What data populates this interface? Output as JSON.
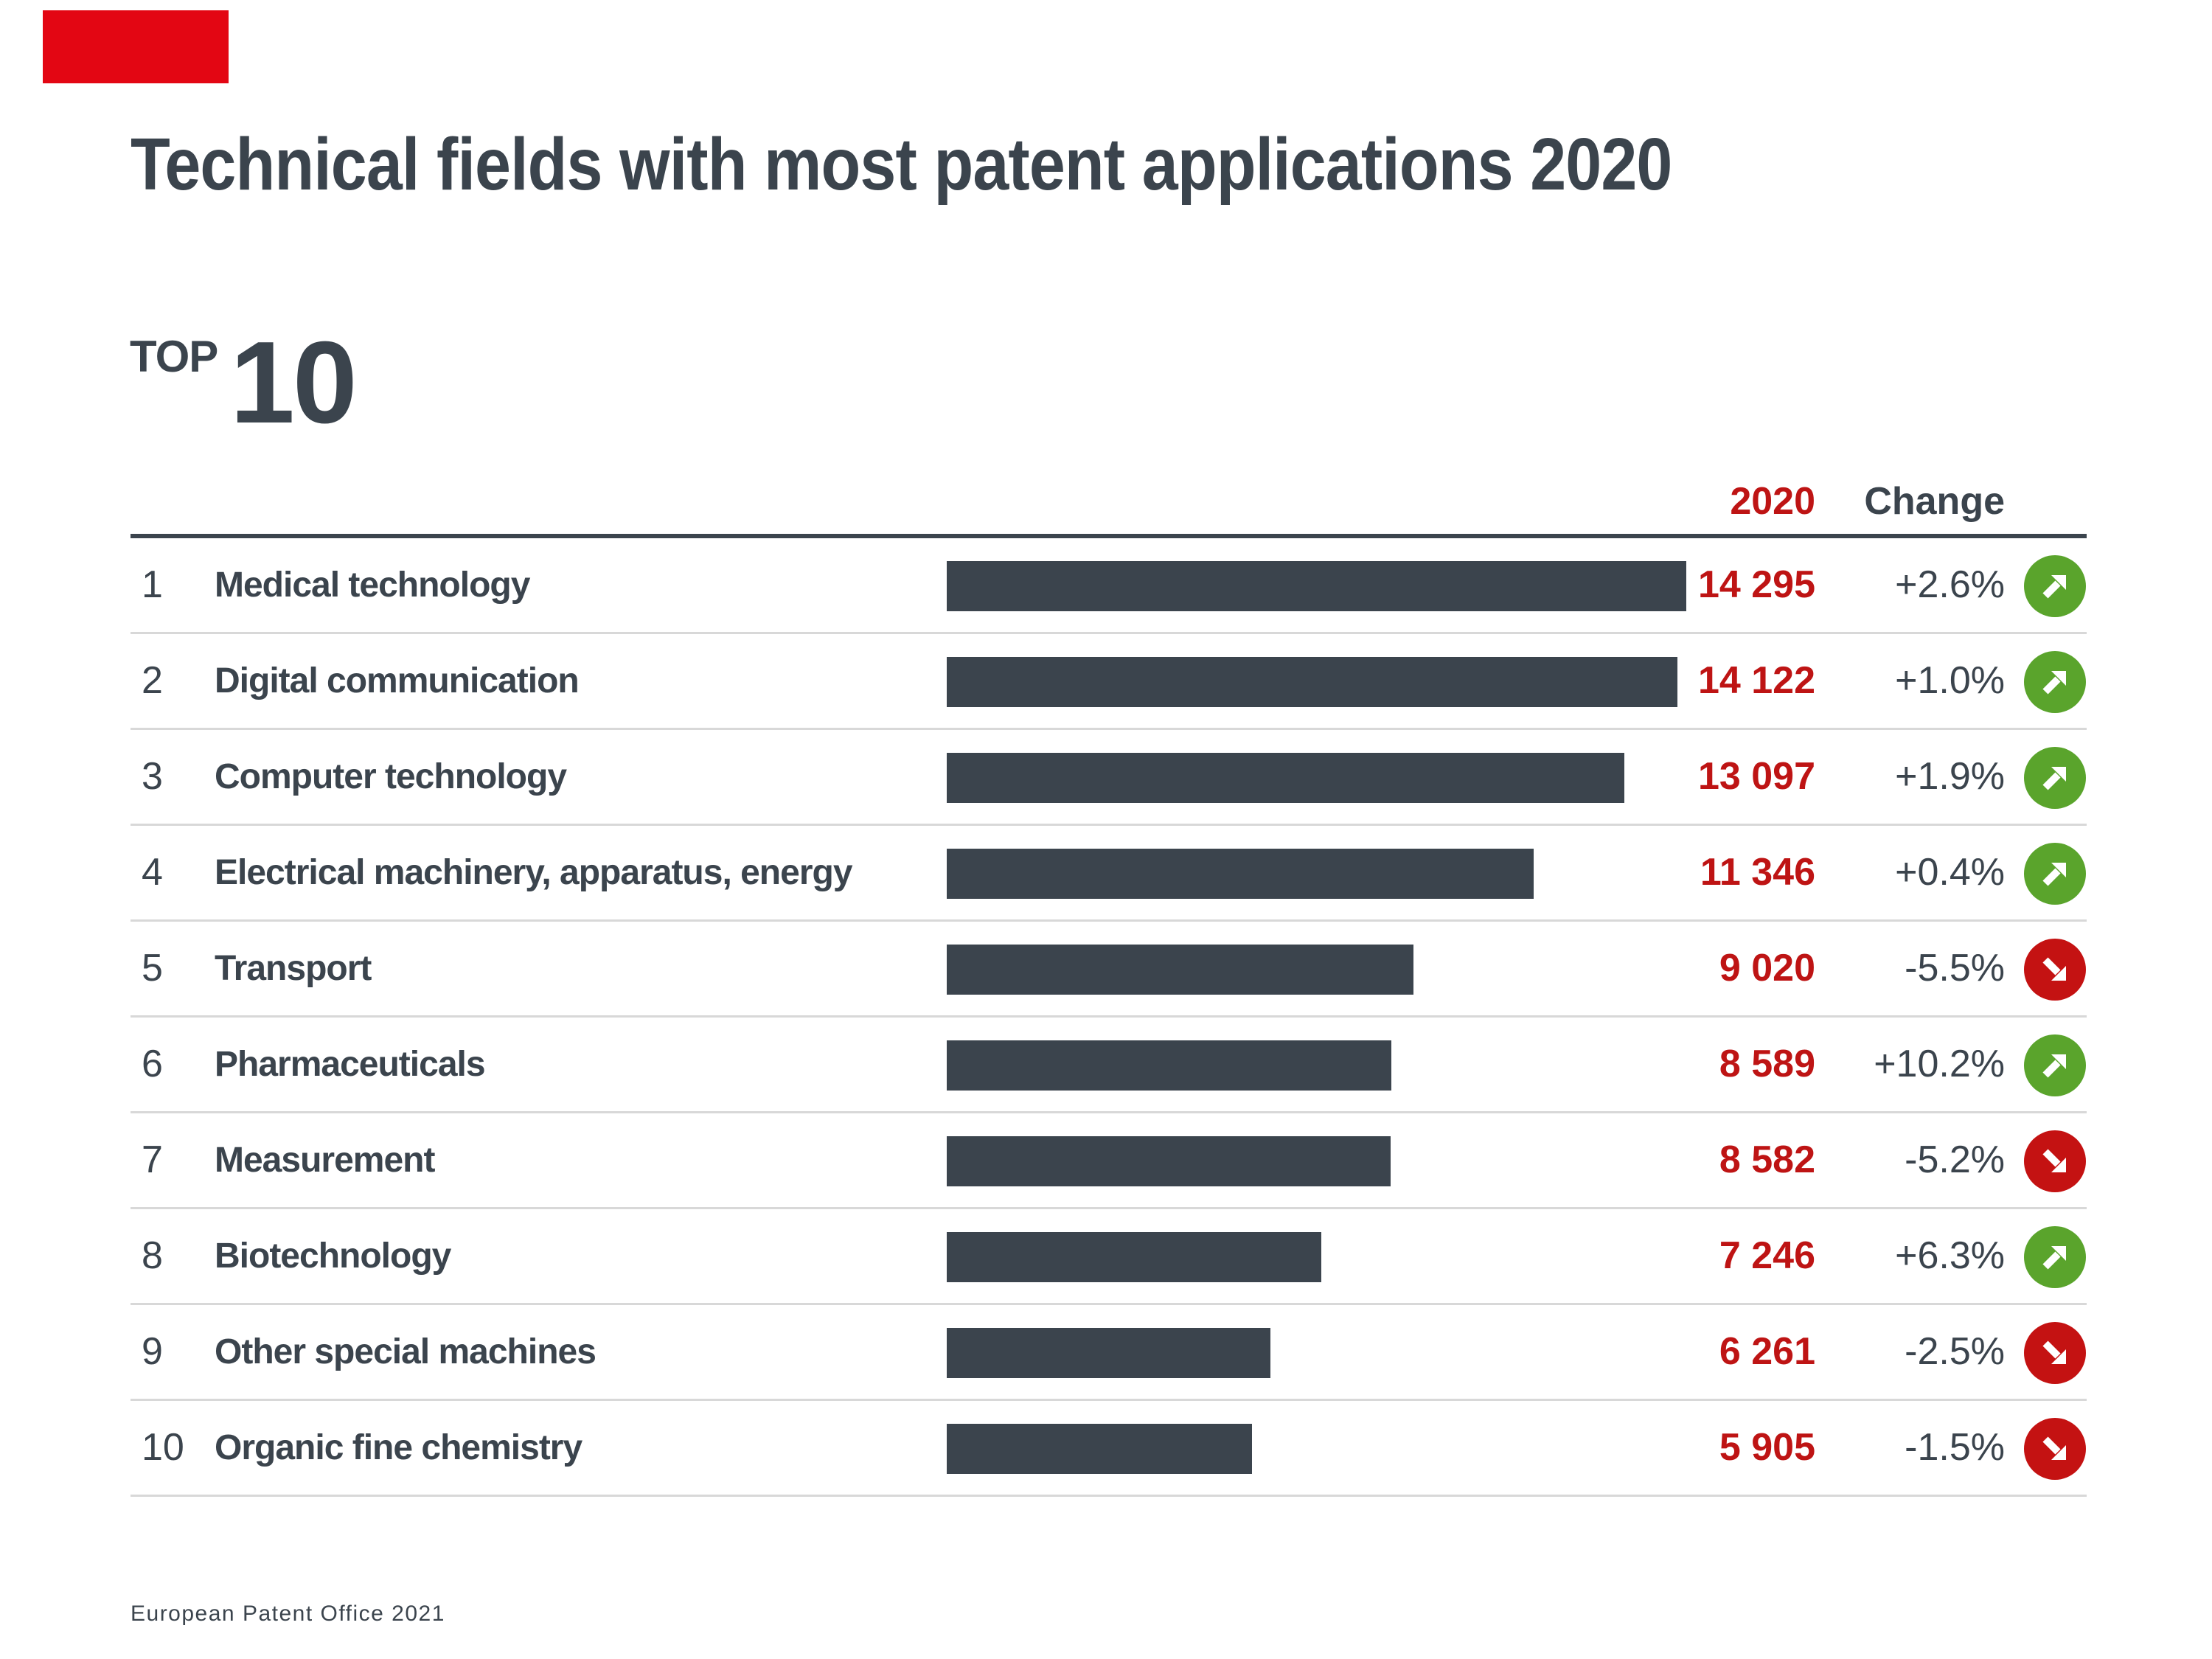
{
  "page": {
    "title": "Technical fields with most patent applications 2020",
    "top_label": "TOP",
    "top_number": "10",
    "footer": "European Patent Office 2021"
  },
  "table": {
    "col_year": "2020",
    "col_change": "Change",
    "rows": [
      {
        "rank": "1",
        "field": "Medical technology",
        "value": "14 295",
        "value_num": 14295,
        "change": "+2.6%",
        "direction": "up"
      },
      {
        "rank": "2",
        "field": "Digital communication",
        "value": "14 122",
        "value_num": 14122,
        "change": "+1.0%",
        "direction": "up"
      },
      {
        "rank": "3",
        "field": "Computer technology",
        "value": "13 097",
        "value_num": 13097,
        "change": "+1.9%",
        "direction": "up"
      },
      {
        "rank": "4",
        "field": "Electrical machinery, apparatus, energy",
        "value": "11 346",
        "value_num": 11346,
        "change": "+0.4%",
        "direction": "up"
      },
      {
        "rank": "5",
        "field": "Transport",
        "value": "9 020",
        "value_num": 9020,
        "change": "-5.5%",
        "direction": "down"
      },
      {
        "rank": "6",
        "field": "Pharmaceuticals",
        "value": "8 589",
        "value_num": 8589,
        "change": "+10.2%",
        "direction": "up"
      },
      {
        "rank": "7",
        "field": "Measurement",
        "value": "8 582",
        "value_num": 8582,
        "change": "-5.2%",
        "direction": "down"
      },
      {
        "rank": "8",
        "field": "Biotechnology",
        "value": "7 246",
        "value_num": 7246,
        "change": "+6.3%",
        "direction": "up"
      },
      {
        "rank": "9",
        "field": "Other special machines",
        "value": "6 261",
        "value_num": 6261,
        "change": "-2.5%",
        "direction": "down"
      },
      {
        "rank": "10",
        "field": "Organic fine chemistry",
        "value": "5 905",
        "value_num": 5905,
        "change": "-1.5%",
        "direction": "down"
      }
    ]
  },
  "chart_data": {
    "type": "bar",
    "orientation": "horizontal",
    "title": "Technical fields with most patent applications 2020",
    "subtitle": "TOP 10",
    "categories": [
      "Medical technology",
      "Digital communication",
      "Computer technology",
      "Electrical machinery, apparatus, energy",
      "Transport",
      "Pharmaceuticals",
      "Measurement",
      "Biotechnology",
      "Other special machines",
      "Organic fine chemistry"
    ],
    "values": [
      14295,
      14122,
      13097,
      11346,
      9020,
      8589,
      8582,
      7246,
      6261,
      5905
    ],
    "series_label": "2020",
    "change_percent": [
      2.6,
      1.0,
      1.9,
      0.4,
      -5.5,
      10.2,
      -5.2,
      6.3,
      -2.5,
      -1.5
    ],
    "xlim": [
      0,
      14295
    ],
    "grid": false,
    "legend": false,
    "source": "European Patent Office 2021"
  },
  "colors": {
    "slate": "#3B444D",
    "red_text": "#BE1414",
    "red_circle": "#C41212",
    "green_circle": "#5AA42C",
    "brand_red": "#E30613",
    "separator": "#D8D8D8"
  }
}
